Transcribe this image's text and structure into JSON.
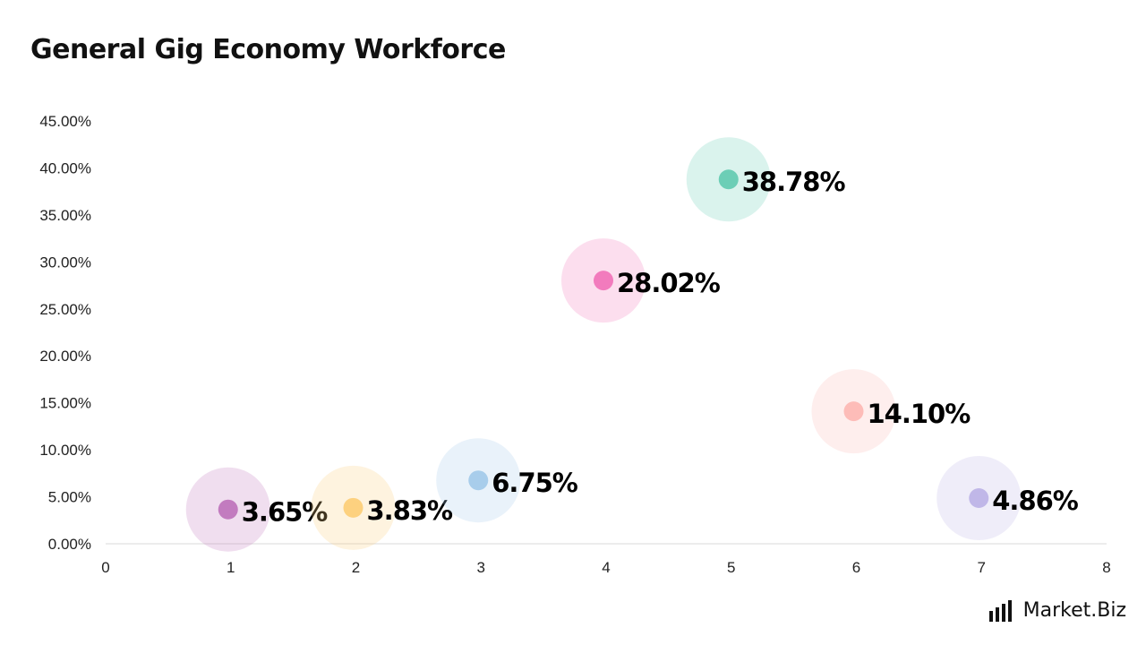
{
  "chart_data": {
    "type": "scatter",
    "title": "General Gig Economy Workforce",
    "xlabel": "",
    "ylabel": "",
    "xlim": [
      0,
      8
    ],
    "ylim": [
      0,
      45
    ],
    "x_ticks": [
      "0",
      "1",
      "2",
      "3",
      "4",
      "5",
      "6",
      "7",
      "8"
    ],
    "y_ticks": [
      "0.00%",
      "5.00%",
      "10.00%",
      "15.00%",
      "20.00%",
      "25.00%",
      "30.00%",
      "35.00%",
      "40.00%",
      "45.00%"
    ],
    "grid": false,
    "legend": "none",
    "points": [
      {
        "x": 1,
        "y": 3.65,
        "label": "3.65%",
        "color": "#c27bbf"
      },
      {
        "x": 2,
        "y": 3.83,
        "label": "3.83%",
        "color": "#fdd17f"
      },
      {
        "x": 3,
        "y": 6.75,
        "label": "6.75%",
        "color": "#a8cdeb"
      },
      {
        "x": 4,
        "y": 28.02,
        "label": "28.02%",
        "color": "#f27bbd"
      },
      {
        "x": 5,
        "y": 38.78,
        "label": "38.78%",
        "color": "#6cceb6"
      },
      {
        "x": 6,
        "y": 14.1,
        "label": "14.10%",
        "color": "#fdbcb8"
      },
      {
        "x": 7,
        "y": 4.86,
        "label": "4.86%",
        "color": "#c0b7e8"
      }
    ]
  },
  "logo": {
    "text": "Market.Biz"
  }
}
